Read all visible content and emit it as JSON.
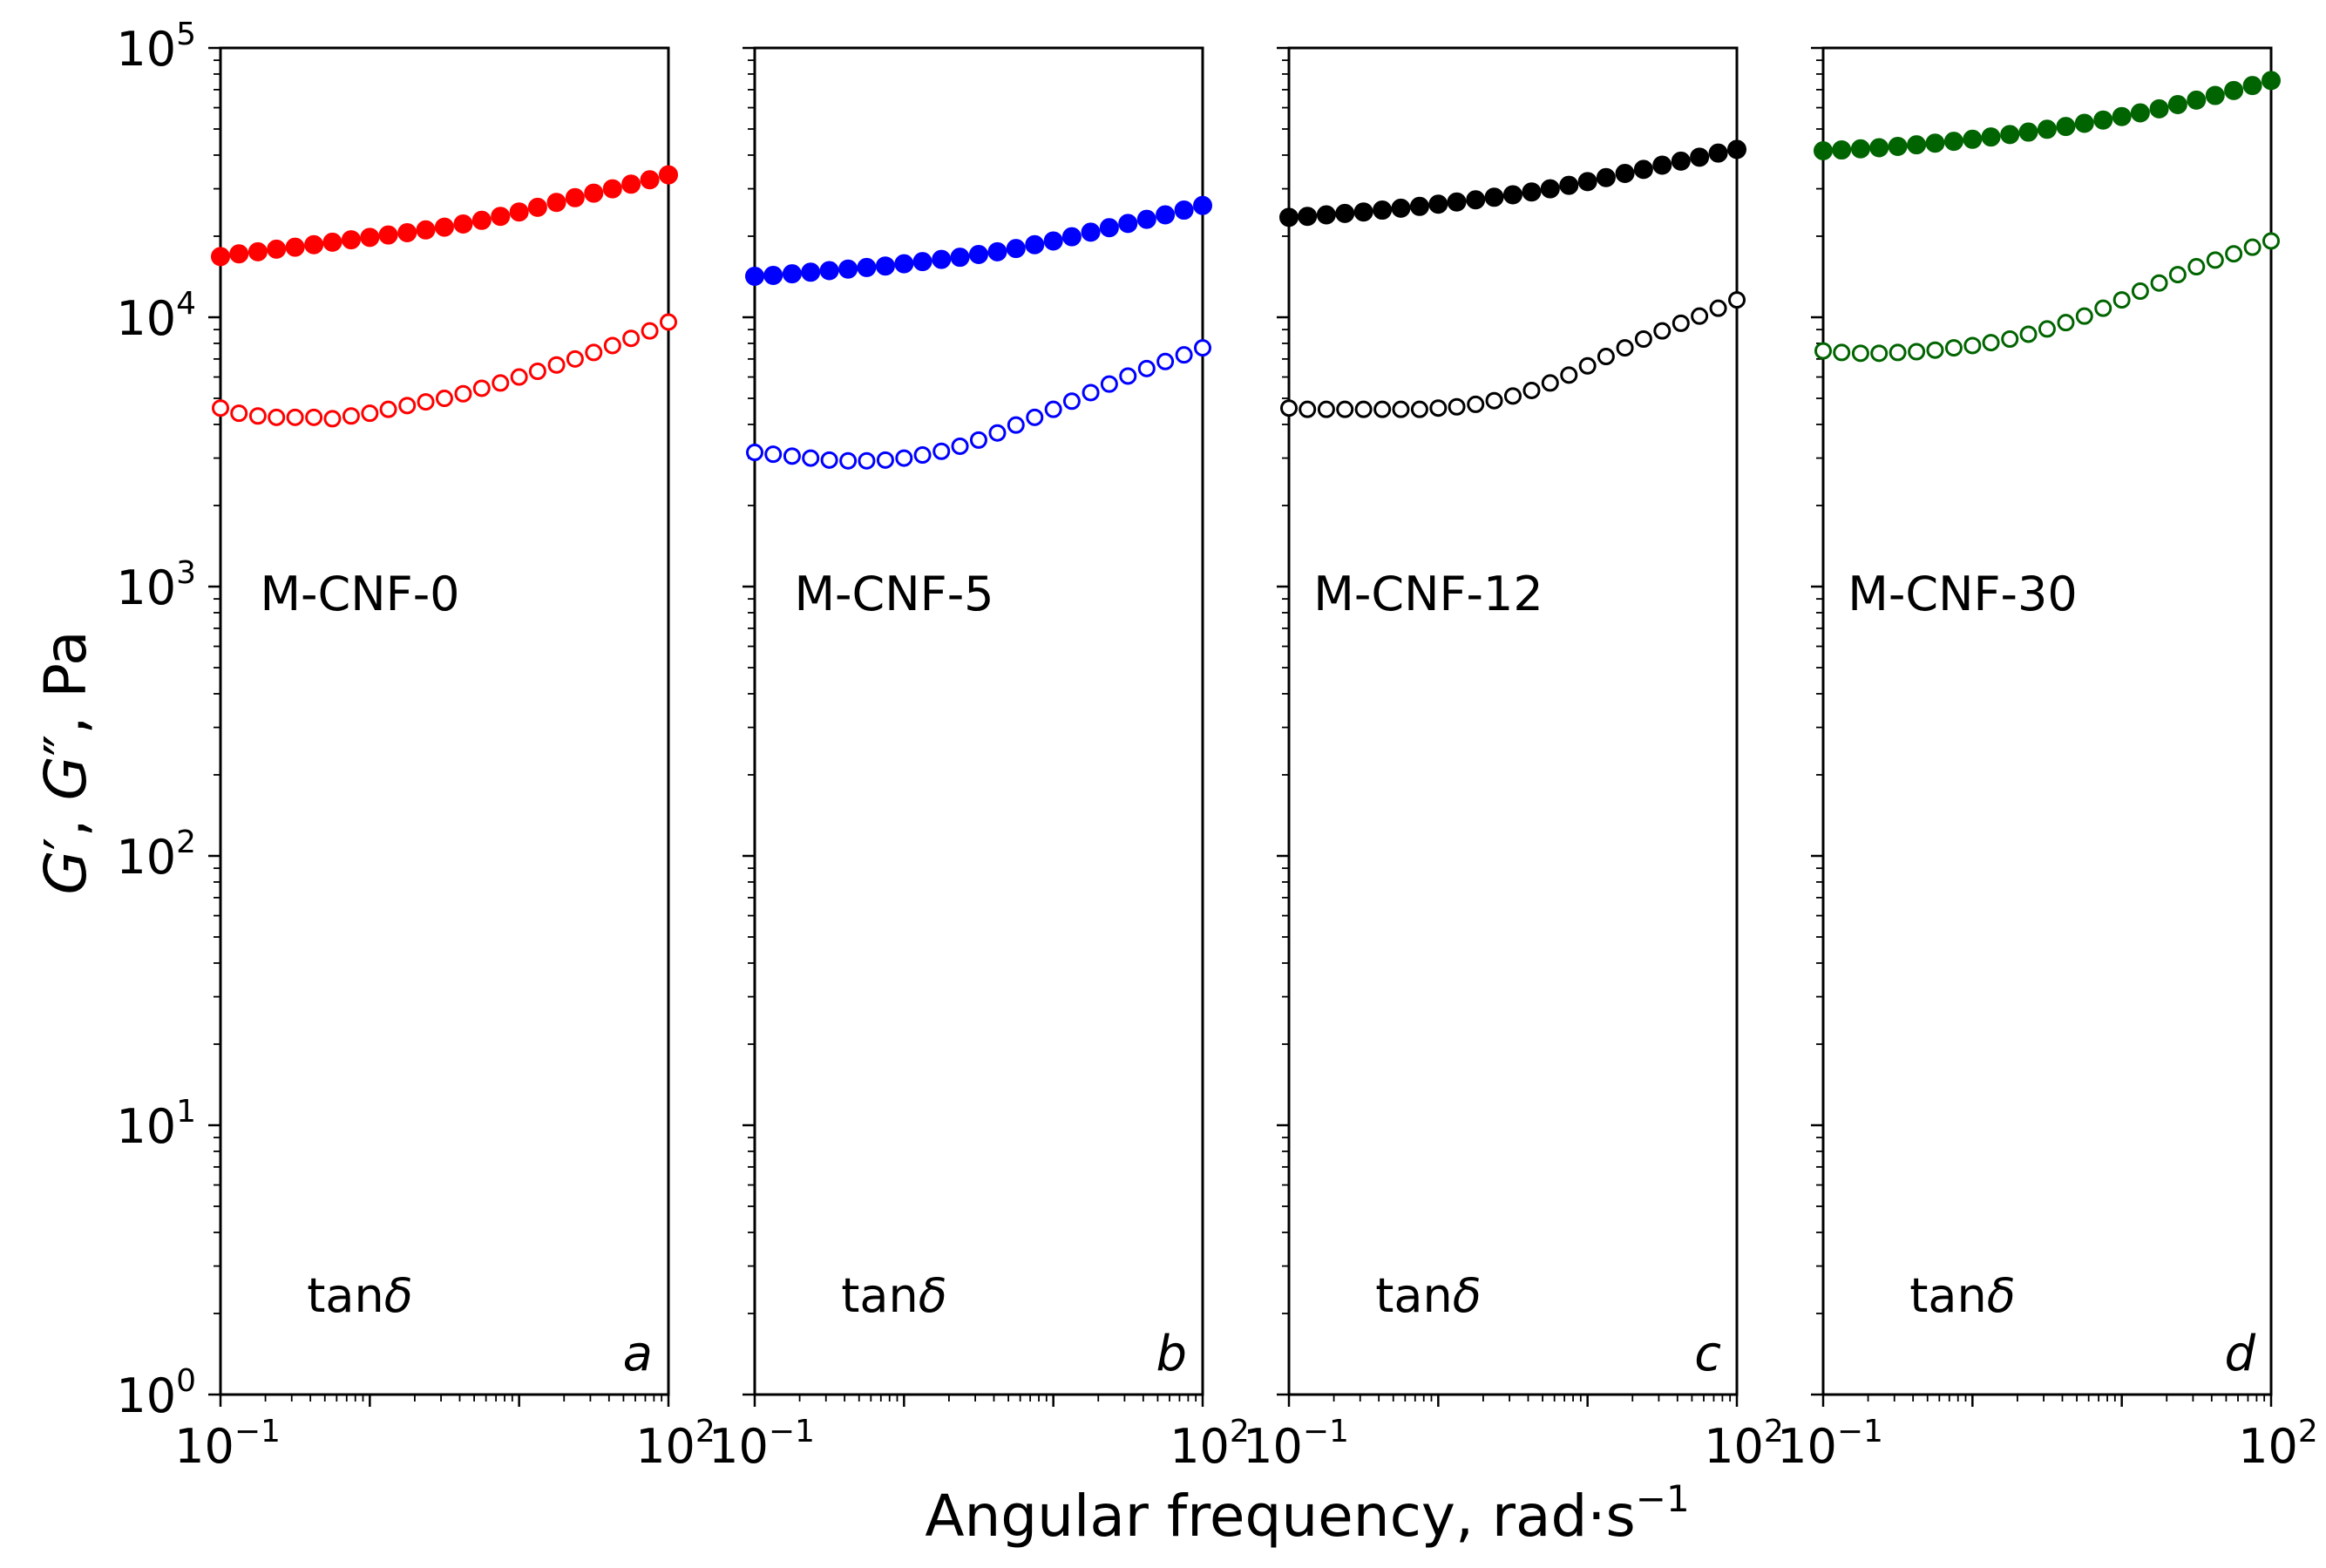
{
  "chart_data": {
    "type": "scatter",
    "xscale": "log",
    "yscale": "log",
    "xlim": [
      0.1,
      100
    ],
    "ylim": [
      1,
      100000
    ],
    "xlabel": "Angular frequency, rad·s",
    "xlabel_unit_exponent": "−1",
    "ylabel_parts": [
      "G",
      "′",
      ", ",
      "G",
      "″",
      ", Pa"
    ],
    "x_ticks": [
      {
        "base": "10",
        "exp": "−1"
      },
      {
        "base": "10",
        "exp": "2"
      }
    ],
    "y_ticks": [
      {
        "base": "10",
        "exp": "0"
      },
      {
        "base": "10",
        "exp": "1"
      },
      {
        "base": "10",
        "exp": "2"
      },
      {
        "base": "10",
        "exp": "3"
      },
      {
        "base": "10",
        "exp": "4"
      },
      {
        "base": "10",
        "exp": "5"
      }
    ],
    "tan_delta_label": "tanδ",
    "x": [
      0.1,
      0.133,
      0.178,
      0.237,
      0.316,
      0.422,
      0.562,
      0.75,
      1.0,
      1.33,
      1.78,
      2.37,
      3.16,
      4.22,
      5.62,
      7.5,
      10.0,
      13.3,
      17.8,
      23.7,
      31.6,
      42.2,
      56.2,
      75.0,
      100.0
    ],
    "panels": [
      {
        "letter": "a",
        "sample": "M-CNF-0",
        "color": "#ff0000",
        "series": [
          {
            "name": "G′",
            "marker": "filled",
            "values": [
              16800,
              17200,
              17500,
              17900,
              18200,
              18600,
              19000,
              19400,
              19800,
              20200,
              20600,
              21100,
              21600,
              22200,
              22900,
              23700,
              24600,
              25600,
              26700,
              27800,
              28900,
              30000,
              31200,
              32400,
              33800
            ]
          },
          {
            "name": "G″",
            "marker": "open",
            "values": [
              4600,
              4400,
              4300,
              4250,
              4250,
              4250,
              4200,
              4300,
              4400,
              4550,
              4700,
              4850,
              5000,
              5200,
              5450,
              5700,
              6000,
              6300,
              6650,
              7000,
              7400,
              7850,
              8350,
              8900,
              9600
            ]
          }
        ]
      },
      {
        "letter": "b",
        "sample": "M-CNF-5",
        "color": "#0000ff",
        "series": [
          {
            "name": "G′",
            "marker": "filled",
            "values": [
              14200,
              14300,
              14500,
              14700,
              14900,
              15100,
              15300,
              15500,
              15800,
              16100,
              16400,
              16700,
              17100,
              17500,
              18000,
              18600,
              19200,
              19900,
              20700,
              21500,
              22300,
              23100,
              24000,
              25000,
              26000
            ]
          },
          {
            "name": "G″",
            "marker": "open",
            "values": [
              3150,
              3100,
              3050,
              3000,
              2950,
              2930,
              2930,
              2950,
              3000,
              3080,
              3180,
              3320,
              3500,
              3720,
              3980,
              4250,
              4550,
              4880,
              5250,
              5650,
              6050,
              6450,
              6850,
              7250,
              7700
            ]
          }
        ]
      },
      {
        "letter": "c",
        "sample": "M-CNF-12",
        "color": "#000000",
        "series": [
          {
            "name": "G′",
            "marker": "filled",
            "values": [
              23500,
              23700,
              24000,
              24300,
              24600,
              25000,
              25400,
              25800,
              26300,
              26800,
              27300,
              27900,
              28500,
              29200,
              30000,
              30900,
              31900,
              33000,
              34200,
              35400,
              36700,
              38000,
              39300,
              40700,
              42000
            ]
          },
          {
            "name": "G″",
            "marker": "open",
            "values": [
              4600,
              4550,
              4550,
              4550,
              4550,
              4550,
              4550,
              4550,
              4600,
              4650,
              4750,
              4900,
              5100,
              5350,
              5700,
              6100,
              6600,
              7150,
              7700,
              8300,
              8900,
              9500,
              10100,
              10800,
              11600
            ]
          }
        ]
      },
      {
        "letter": "d",
        "sample": "M-CNF-30",
        "color": "#006400",
        "series": [
          {
            "name": "G′",
            "marker": "filled",
            "values": [
              41500,
              41800,
              42200,
              42600,
              43100,
              43700,
              44300,
              45000,
              45800,
              46700,
              47700,
              48700,
              49900,
              51100,
              52500,
              54000,
              55600,
              57400,
              59400,
              61600,
              64000,
              66600,
              69500,
              72500,
              75700
            ]
          },
          {
            "name": "G″",
            "marker": "open",
            "values": [
              7500,
              7400,
              7350,
              7350,
              7400,
              7450,
              7550,
              7700,
              7850,
              8050,
              8300,
              8650,
              9050,
              9550,
              10100,
              10800,
              11600,
              12500,
              13400,
              14400,
              15400,
              16300,
              17200,
              18200,
              19200
            ]
          }
        ]
      }
    ]
  }
}
